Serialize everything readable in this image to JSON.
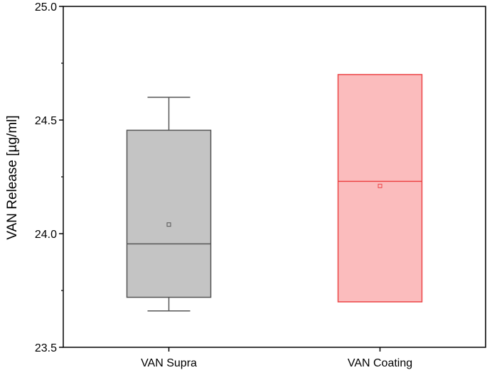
{
  "chart_data": {
    "type": "box",
    "title": "",
    "xlabel": "",
    "ylabel": "VAN Release [µg/ml]",
    "ylim": [
      23.5,
      25.0
    ],
    "yticks": [
      23.5,
      24.0,
      24.5,
      25.0
    ],
    "ytick_labels": [
      "23.5",
      "24.0",
      "24.5",
      "25.0"
    ],
    "yminor_ticks": [
      23.75,
      24.25,
      24.75
    ],
    "categories": [
      "VAN Supra",
      "VAN Coating"
    ],
    "series": [
      {
        "category": "VAN Supra",
        "whisker_low": 23.66,
        "q1": 23.72,
        "median": 23.955,
        "q3": 24.455,
        "whisker_high": 24.6,
        "mean": 24.04,
        "fill": "#c4c4c4",
        "stroke": "#555555",
        "mean_marker_color": "#555555"
      },
      {
        "category": "VAN Coating",
        "whisker_low": 23.7,
        "q1": 23.7,
        "median": 24.23,
        "q3": 24.7,
        "whisker_high": 24.7,
        "mean": 24.21,
        "fill": "#fbbcbd",
        "stroke": "#ec4546",
        "mean_marker_color": "#ec4546"
      }
    ],
    "grid": false,
    "legend": "none"
  }
}
